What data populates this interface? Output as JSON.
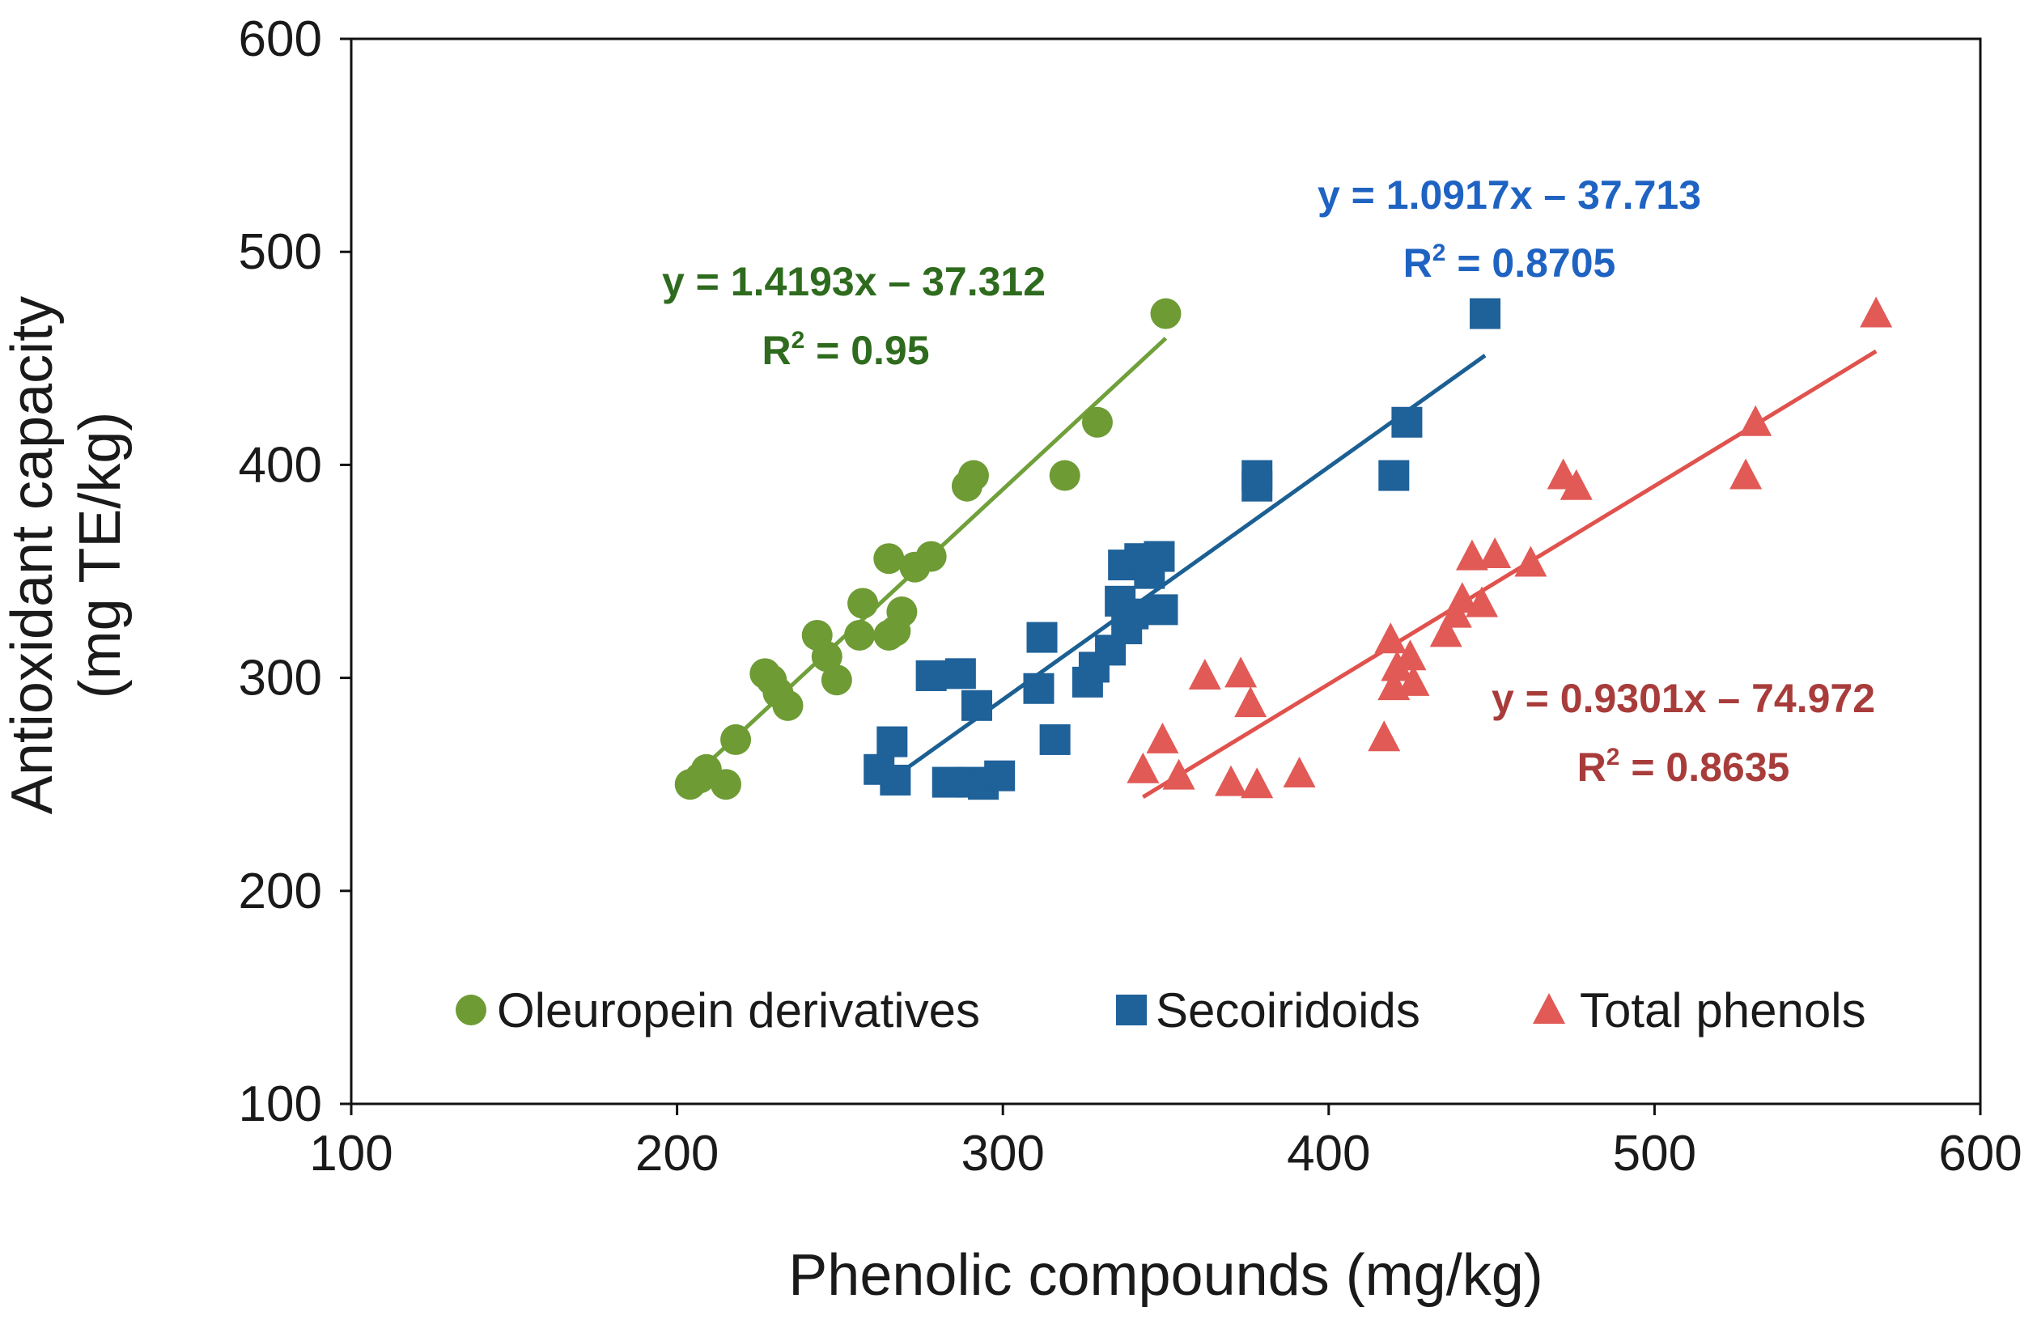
{
  "chart_data": {
    "type": "scatter",
    "xlabel": "Phenolic compounds (mg/kg)",
    "ylabel_line1": "Antioxidant capacity",
    "ylabel_line2": "(mg TE/kg)",
    "xlim": [
      100,
      600
    ],
    "ylim": [
      100,
      600
    ],
    "xticks": [
      100,
      200,
      300,
      400,
      500,
      600
    ],
    "yticks": [
      100,
      200,
      300,
      400,
      500,
      600
    ],
    "xtick_labels": [
      "100",
      "200",
      "300",
      "400",
      "500",
      "600"
    ],
    "ytick_labels": [
      "100",
      "200",
      "300",
      "400",
      "500",
      "600"
    ],
    "grid": false,
    "legend_position": "bottom-inside",
    "series": [
      {
        "name": "Oleuropein derivatives",
        "marker": "circle",
        "color": "#6E9B34",
        "trend_color": "#70A03A",
        "label_color": "#2E6B1E",
        "equation": "y = 1.4193x – 37.312",
        "r2_prefix": "R",
        "r2_sup": "2",
        "r2_value": " = 0.95",
        "slope": 1.4193,
        "intercept": -37.312,
        "trend_x": [
          204,
          350
        ],
        "points": [
          [
            204,
            250
          ],
          [
            207,
            253
          ],
          [
            209,
            257
          ],
          [
            215,
            250
          ],
          [
            218,
            271
          ],
          [
            227,
            302
          ],
          [
            229,
            299
          ],
          [
            231,
            293
          ],
          [
            234,
            287
          ],
          [
            243,
            320
          ],
          [
            246,
            310
          ],
          [
            249,
            299
          ],
          [
            256,
            320
          ],
          [
            257,
            335
          ],
          [
            265,
            356
          ],
          [
            265,
            320
          ],
          [
            267,
            322
          ],
          [
            269,
            331
          ],
          [
            273,
            352
          ],
          [
            278,
            357
          ],
          [
            289,
            390
          ],
          [
            291,
            395
          ],
          [
            319,
            395
          ],
          [
            329,
            420
          ],
          [
            350,
            471
          ]
        ]
      },
      {
        "name": "Secoiridoids",
        "marker": "square",
        "color": "#1F6199",
        "trend_color": "#1B5F93",
        "label_color": "#1F63C2",
        "equation": "y = 1.0917x – 37.713",
        "r2_prefix": "R",
        "r2_sup": "2",
        "r2_value": " = 0.8705",
        "slope": 1.0917,
        "intercept": -37.713,
        "trend_x": [
          268,
          448
        ],
        "points": [
          [
            262,
            257
          ],
          [
            266,
            270
          ],
          [
            267,
            252
          ],
          [
            278,
            301
          ],
          [
            283,
            251
          ],
          [
            287,
            302
          ],
          [
            290,
            251
          ],
          [
            292,
            287
          ],
          [
            294,
            250
          ],
          [
            299,
            254
          ],
          [
            311,
            295
          ],
          [
            312,
            319
          ],
          [
            316,
            271
          ],
          [
            326,
            298
          ],
          [
            328,
            305
          ],
          [
            333,
            313
          ],
          [
            336,
            336
          ],
          [
            337,
            353
          ],
          [
            338,
            323
          ],
          [
            340,
            330
          ],
          [
            342,
            356
          ],
          [
            345,
            349
          ],
          [
            348,
            357
          ],
          [
            349,
            332
          ],
          [
            378,
            390
          ],
          [
            378,
            395
          ],
          [
            420,
            395
          ],
          [
            424,
            420
          ],
          [
            448,
            471
          ]
        ]
      },
      {
        "name": "Total phenols",
        "marker": "triangle",
        "color": "#E15A56",
        "trend_color": "#E0524D",
        "label_color": "#A83C3A",
        "equation": "y = 0.9301x – 74.972",
        "r2_prefix": "R",
        "r2_sup": "2",
        "r2_value": " = 0.8635",
        "slope": 0.9301,
        "intercept": -74.972,
        "trend_x": [
          343,
          568
        ],
        "points": [
          [
            343,
            257
          ],
          [
            349,
            271
          ],
          [
            354,
            254
          ],
          [
            362,
            301
          ],
          [
            370,
            251
          ],
          [
            373,
            302
          ],
          [
            376,
            288
          ],
          [
            378,
            250
          ],
          [
            391,
            255
          ],
          [
            417,
            272
          ],
          [
            419,
            318
          ],
          [
            420,
            296
          ],
          [
            421,
            305
          ],
          [
            425,
            310
          ],
          [
            426,
            298
          ],
          [
            436,
            321
          ],
          [
            439,
            330
          ],
          [
            441,
            337
          ],
          [
            444,
            357
          ],
          [
            447,
            335
          ],
          [
            451,
            358
          ],
          [
            462,
            354
          ],
          [
            472,
            395
          ],
          [
            476,
            390
          ],
          [
            528,
            395
          ],
          [
            531,
            420
          ],
          [
            568,
            471
          ]
        ]
      }
    ]
  }
}
